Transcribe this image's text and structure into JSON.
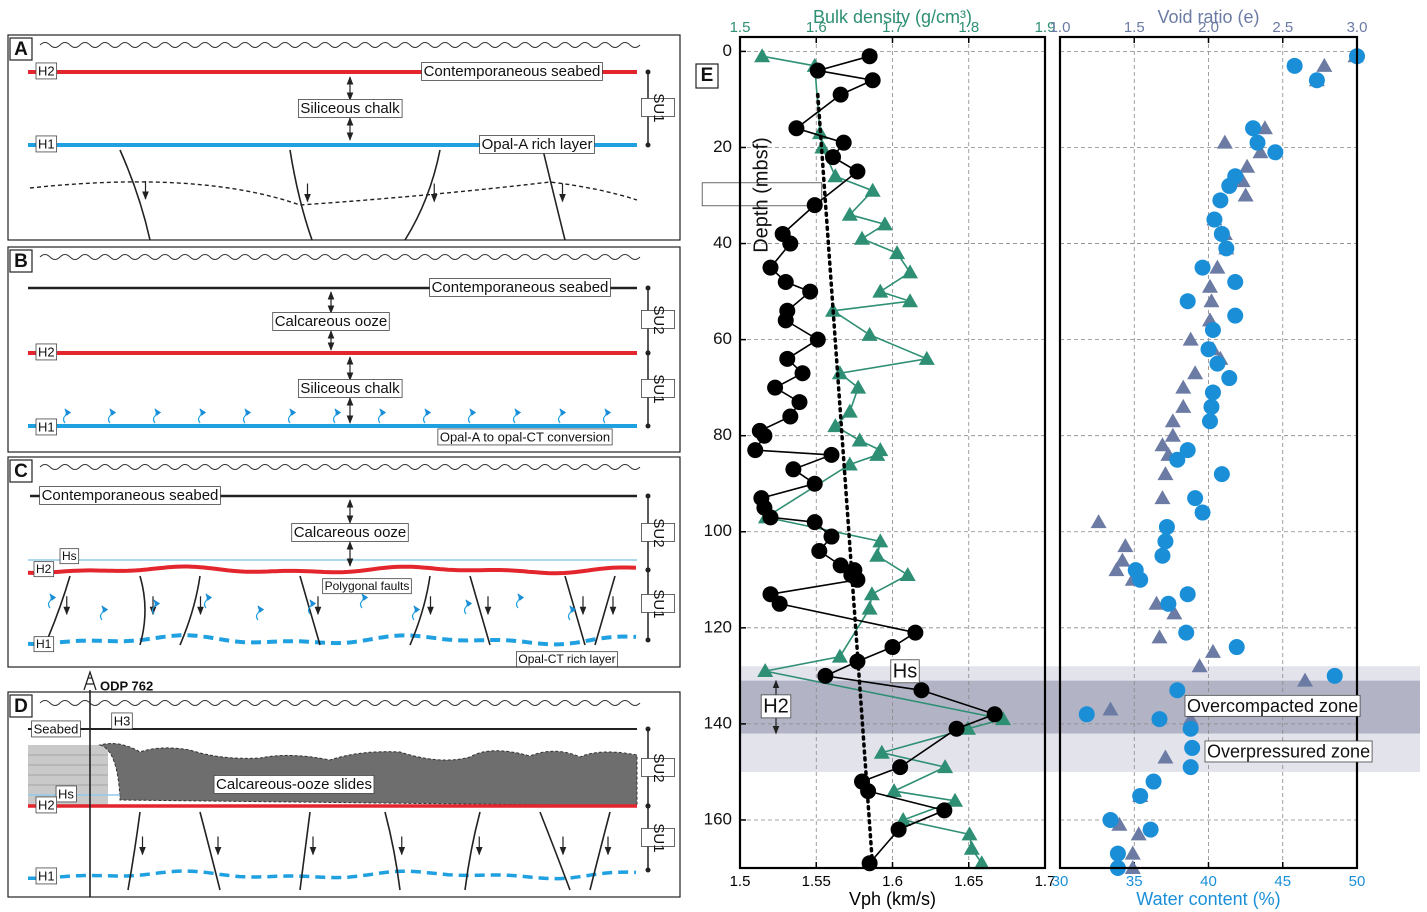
{
  "diagram": {
    "panels": [
      {
        "label": "A",
        "texts": [
          "H2",
          "Contemporaneous  seabed",
          "Siliceous chalk",
          "H1",
          "Opal-A rich layer",
          "SU1"
        ]
      },
      {
        "label": "B",
        "texts": [
          "Contemporaneous  seabed",
          "Calcareous ooze",
          "H2",
          "Siliceous chalk",
          "H1",
          "Opal-A to opal-CT conversion",
          "SU2",
          "SU1"
        ]
      },
      {
        "label": "C",
        "texts": [
          "Contemporaneous  seabed",
          "Calcareous ooze",
          "Hs",
          "H2",
          "Polygonal faults",
          "H1",
          "Opal-CT rich layer",
          "SU2",
          "SU1"
        ]
      },
      {
        "label": "D",
        "well": "ODP 762",
        "texts": [
          "Seabed",
          "H3",
          "Hs",
          "H2",
          "Calcareous-ooze slides",
          "H1",
          "SU2",
          "SU1"
        ]
      }
    ],
    "panel_label": "E"
  },
  "chart_data": [
    {
      "type": "scatter",
      "xlabel": "Vph (km/s)",
      "x2label": "Bulk density (g/cm³)",
      "ylabel": "Depth (mbsf)",
      "xlim": [
        1.5,
        1.7
      ],
      "xticks": [
        1.5,
        1.55,
        1.6,
        1.65,
        1.7
      ],
      "x2lim": [
        1.5,
        1.9
      ],
      "x2ticks": [
        1.5,
        1.6,
        1.7,
        1.8,
        1.9
      ],
      "ylim": [
        -3,
        170
      ],
      "yticks": [
        0,
        20,
        40,
        60,
        80,
        100,
        120,
        140,
        160
      ],
      "y_inverted": true,
      "grid": true,
      "annotations": [
        "Hs",
        "H2"
      ],
      "series": [
        {
          "color": "#2f8f74",
          "marker": "triangle",
          "axis": "x2",
          "line": true,
          "x": [
            1.529,
            1.598,
            1.605,
            1.608,
            1.625,
            1.674,
            1.644,
            1.69,
            1.66,
            1.706,
            1.723,
            1.684,
            1.723,
            1.622,
            1.67,
            1.745,
            1.631,
            1.655,
            1.644,
            1.625,
            1.657,
            1.684,
            1.68,
            1.644,
            1.534,
            1.684,
            1.68,
            1.72,
            1.673,
            1.67,
            1.631,
            1.533,
            1.845,
            1.799,
            1.686,
            1.769,
            1.702,
            1.782,
            1.714,
            1.801,
            1.804,
            1.817
          ],
          "y": [
            1,
            3,
            17,
            20,
            26,
            29,
            34,
            36,
            39,
            42,
            46,
            50,
            52,
            54,
            59,
            64,
            67,
            70,
            75,
            78,
            81,
            83,
            84,
            86,
            97,
            102,
            105,
            109,
            113,
            116,
            126,
            129,
            139,
            141,
            146,
            149,
            154,
            156,
            160,
            163,
            166,
            169
          ]
        },
        {
          "color": "#000000",
          "marker": "circle",
          "line": true,
          "x": [
            1.585,
            1.551,
            1.587,
            1.566,
            1.537,
            1.568,
            1.561,
            1.577,
            1.549,
            1.528,
            1.533,
            1.52,
            1.53,
            1.546,
            1.531,
            1.53,
            1.551,
            1.531,
            1.541,
            1.523,
            1.539,
            1.533,
            1.513,
            1.516,
            1.51,
            1.56,
            1.535,
            1.549,
            1.514,
            1.516,
            1.52,
            1.549,
            1.56,
            1.552,
            1.566,
            1.575,
            1.573,
            1.577,
            1.52,
            1.526,
            1.615,
            1.6,
            1.577,
            1.556,
            1.619,
            1.667,
            1.642,
            1.605,
            1.58,
            1.584,
            1.634,
            1.604,
            1.585
          ],
          "y": [
            1,
            4,
            6,
            9,
            16,
            19,
            22,
            25,
            32,
            38,
            40,
            45,
            48,
            50,
            54,
            56,
            60,
            64,
            67,
            70,
            73,
            76,
            79,
            80,
            83,
            84,
            87,
            90,
            93,
            95,
            97,
            98,
            101,
            104,
            107,
            108,
            109,
            110,
            113,
            115,
            121,
            124,
            127,
            130,
            133,
            138,
            141,
            149,
            152,
            154,
            158,
            162,
            169
          ]
        },
        {
          "color": "#000000",
          "marker": "none",
          "line": true,
          "dash": true,
          "x": [
            1.551,
            1.587
          ],
          "y": [
            9,
            170
          ]
        }
      ]
    },
    {
      "type": "scatter",
      "xlabel": "Water content (%)",
      "x2label": "Void ratio (e)",
      "xlim": [
        30,
        50
      ],
      "xticks": [
        30,
        35,
        40,
        45,
        50
      ],
      "x2lim": [
        1,
        3
      ],
      "x2ticks": [
        {
          "value": 1,
          "label": "1.0"
        },
        1.5,
        {
          "value": 2,
          "label": "2.0"
        },
        2.5,
        {
          "value": 3,
          "label": "3.0"
        }
      ],
      "ylim": [
        -3,
        170
      ],
      "y_inverted": true,
      "grid": true,
      "zones": [
        {
          "label": "Overpressured zone",
          "range": [
            128,
            150
          ]
        },
        {
          "label": "Overcompacted zone",
          "range": [
            131,
            142
          ]
        }
      ],
      "series": [
        {
          "color": "#6b7ba3",
          "marker": "triangle",
          "axis": "x2",
          "line": false,
          "x": [
            2.99,
            2.78,
            2.73,
            2.38,
            2.11,
            2.35,
            2.26,
            2.23,
            2.25,
            2.04,
            2.11,
            2.12,
            2.06,
            2.01,
            2.02,
            2.01,
            1.88,
            2.03,
            2.08,
            1.91,
            1.83,
            1.83,
            1.76,
            1.76,
            1.69,
            1.73,
            1.71,
            1.69,
            1.26,
            1.44,
            1.42,
            1.38,
            1.49,
            1.65,
            1.77,
            1.67,
            2.03,
            1.94,
            2.65,
            1.34,
            1.88,
            1.71,
            1.54,
            1.4,
            1.53,
            1.49,
            1.49
          ],
          "y": [
            1,
            3,
            6,
            16,
            19,
            21,
            24,
            27,
            30,
            35,
            38,
            41,
            45,
            49,
            52,
            56,
            60,
            62,
            64,
            67,
            70,
            74,
            77,
            80,
            82,
            84,
            88,
            93,
            98,
            103,
            106,
            108,
            110,
            115,
            117,
            122,
            125,
            128,
            131,
            137,
            139,
            147,
            155,
            161,
            163,
            167,
            170
          ]
        },
        {
          "color": "#1a8fd8",
          "marker": "circle",
          "line": false,
          "x": [
            50.0,
            45.8,
            47.3,
            43.0,
            43.3,
            44.5,
            41.8,
            41.4,
            40.8,
            40.4,
            40.9,
            41.2,
            39.6,
            41.8,
            38.6,
            41.8,
            40.3,
            40.0,
            40.6,
            41.4,
            40.3,
            40.2,
            40.1,
            38.6,
            37.9,
            40.9,
            39.1,
            39.6,
            37.2,
            37.1,
            36.9,
            35.1,
            35.4,
            38.6,
            37.3,
            38.5,
            41.9,
            48.5,
            37.9,
            31.8,
            36.7,
            38.8,
            38.9,
            38.8,
            36.3,
            35.4,
            33.4,
            36.1,
            33.9,
            33.9
          ],
          "y": [
            1,
            3,
            6,
            16,
            19,
            21,
            26,
            28,
            31,
            35,
            38,
            41,
            45,
            48,
            52,
            55,
            58,
            62,
            65,
            68,
            71,
            74,
            77,
            83,
            85,
            88,
            93,
            96,
            99,
            102,
            105,
            108,
            110,
            113,
            115,
            121,
            124,
            130,
            133,
            138,
            139,
            141,
            145,
            149,
            152,
            155,
            160,
            162,
            167,
            170
          ]
        }
      ]
    }
  ]
}
